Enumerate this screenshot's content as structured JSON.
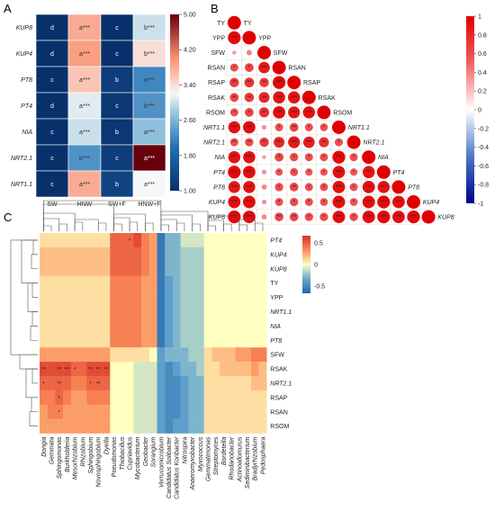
{
  "panels": {
    "a": "A",
    "b": "B",
    "c": "C"
  },
  "chart_data": [
    {
      "type": "heatmap",
      "panel": "A",
      "rows": [
        "KUP8",
        "KUP4",
        "PT8",
        "PT4",
        "NIA",
        "NRT2.1",
        "NRT1.1"
      ],
      "cols": [
        "SW",
        "HNW",
        "SW+F",
        "HNW+F"
      ],
      "values": [
        [
          1.0,
          3.8,
          1.0,
          3.0
        ],
        [
          1.0,
          3.9,
          1.0,
          3.4
        ],
        [
          1.0,
          3.6,
          1.2,
          2.2
        ],
        [
          1.0,
          3.1,
          1.1,
          2.3
        ],
        [
          1.0,
          3.0,
          1.1,
          2.7
        ],
        [
          1.0,
          2.3,
          1.2,
          5.0
        ],
        [
          1.0,
          3.8,
          1.3,
          3.2
        ]
      ],
      "labels": [
        [
          "d",
          "a***",
          "c",
          "b***"
        ],
        [
          "d",
          "a***",
          "c",
          "b***"
        ],
        [
          "c",
          "a***",
          "b",
          "a***"
        ],
        [
          "d",
          "a***",
          "c",
          "b***"
        ],
        [
          "c",
          "a***",
          "b",
          "a***"
        ],
        [
          "c",
          "b***",
          "c",
          "a***"
        ],
        [
          "c",
          "a***",
          "b",
          "a***"
        ]
      ],
      "colorbar_ticks": [
        "5.00",
        "4.20",
        "3.40",
        "2.60",
        "1.80",
        "1.00"
      ],
      "ylim": [
        1.0,
        5.0
      ]
    },
    {
      "type": "heatmap",
      "panel": "B",
      "variables": [
        "TY",
        "YPP",
        "SFW",
        "RSAN",
        "RSAP",
        "RSAK",
        "RSOM",
        "NRT1.1",
        "NRT2.1",
        "NIA",
        "PT4",
        "PT8",
        "KUP4",
        "KUP8"
      ],
      "italic_variables": [
        "NRT1.1",
        "NRT2.1",
        "NIA",
        "PT4",
        "PT8",
        "KUP4",
        "KUP8"
      ],
      "correlations": [
        [
          1.0
        ],
        [
          0.95,
          1.0
        ],
        [
          0.3,
          0.4,
          1.0
        ],
        [
          0.6,
          0.65,
          0.85,
          1.0
        ],
        [
          0.7,
          0.72,
          0.7,
          0.95,
          1.0
        ],
        [
          0.65,
          0.7,
          0.8,
          0.9,
          0.9,
          1.0
        ],
        [
          0.6,
          0.65,
          0.75,
          0.92,
          0.88,
          0.9,
          1.0
        ],
        [
          0.9,
          0.92,
          0.35,
          0.6,
          0.65,
          0.6,
          0.58,
          1.0
        ],
        [
          0.6,
          0.62,
          0.7,
          0.8,
          0.88,
          0.85,
          0.75,
          0.6,
          1.0
        ],
        [
          0.9,
          0.9,
          0.3,
          0.65,
          0.62,
          0.6,
          0.6,
          0.95,
          0.6,
          1.0
        ],
        [
          0.95,
          0.93,
          0.35,
          0.55,
          0.6,
          0.55,
          0.55,
          0.92,
          0.55,
          0.9,
          1.0
        ],
        [
          0.88,
          0.9,
          0.38,
          0.62,
          0.65,
          0.6,
          0.6,
          0.92,
          0.6,
          0.92,
          0.9,
          1.0
        ],
        [
          0.92,
          0.93,
          0.35,
          0.6,
          0.62,
          0.6,
          0.58,
          0.93,
          0.58,
          0.93,
          0.95,
          0.92,
          1.0
        ],
        [
          0.95,
          0.93,
          0.38,
          0.65,
          0.65,
          0.62,
          0.62,
          0.92,
          0.62,
          0.93,
          0.95,
          0.92,
          0.95,
          1.0
        ]
      ],
      "significance": [
        [
          ""
        ],
        [
          "***",
          ""
        ],
        [
          "",
          "",
          ""
        ],
        [
          "*",
          "*",
          "***",
          ""
        ],
        [
          "**",
          "**",
          "**",
          "***",
          ""
        ],
        [
          "**",
          "**",
          "**",
          "***",
          "***",
          ""
        ],
        [
          "*",
          "*",
          "**",
          "***",
          "***",
          "***",
          ""
        ],
        [
          "***",
          "***",
          "",
          "*",
          "**",
          "*",
          "*",
          ""
        ],
        [
          "**",
          "**",
          "**",
          "***",
          "***",
          "***",
          "**",
          "*",
          ""
        ],
        [
          "***",
          "***",
          "",
          "*",
          "*",
          "*",
          "*",
          "***",
          "*",
          ""
        ],
        [
          "***",
          "***",
          "",
          "*",
          "*",
          "*",
          "*",
          "***",
          "*",
          "***",
          ""
        ],
        [
          "***",
          "***",
          "",
          "*",
          "**",
          "*",
          "*",
          "***",
          "*",
          "***",
          "***",
          ""
        ],
        [
          "***",
          "***",
          "",
          "*",
          "*",
          "*",
          "*",
          "***",
          "*",
          "***",
          "***",
          "***",
          ""
        ],
        [
          "***",
          "***",
          "",
          "**",
          "**",
          "*",
          "*",
          "***",
          "*",
          "***",
          "***",
          "***",
          "***",
          ""
        ]
      ],
      "colorbar_ticks": [
        "1",
        "0.8",
        "0.6",
        "0.4",
        "0.2",
        "0",
        "-0.2",
        "-0.4",
        "-0.6",
        "-0.8",
        "-1"
      ]
    },
    {
      "type": "heatmap",
      "panel": "C",
      "rows": [
        "PT4",
        "KUP4",
        "KUP8",
        "TY",
        "YPP",
        "NRT1.1",
        "NIA",
        "PT8",
        "SFW",
        "RSAK",
        "NRT2.1",
        "RSAP",
        "RSAN",
        "RSOM"
      ],
      "italic_rows": [
        "PT4",
        "KUP4",
        "KUP8",
        "NRT1.1",
        "NIA",
        "PT8",
        "NRT2.1"
      ],
      "cols": [
        "Dongia",
        "Gemmata",
        "Sphingomonas",
        "Burkholderia",
        "Mesorhizobium",
        "Rhizobium",
        "Sphingobium",
        "Novosphingobium",
        "Dyella",
        "Pseudomonas",
        "Thiobacillus",
        "Cupriavidus",
        "Mycobacterium",
        "Geobacter",
        "Sorangium",
        "Verrucomicrobium",
        "Candidatus Solibacter",
        "Candidatus Koribacter",
        "Nitrospira",
        "Anaeromyxobacter",
        "Myxococcus",
        "Gemmatimonas",
        "Streptomyces",
        "Bordetella",
        "Rhodanobacter",
        "Actinoallomurus",
        "Sediminibacterium",
        "Bradyrhizobium",
        "Pedosphaera"
      ],
      "values": [
        [
          0.1,
          0.1,
          0.1,
          0.1,
          0.1,
          0.1,
          0.1,
          0.1,
          0.1,
          0.5,
          0.5,
          0.5,
          0.6,
          0.4,
          0.3,
          -0.6,
          -0.3,
          -0.3,
          -0.1,
          -0.1,
          -0.1,
          0.0,
          0.0,
          0.0,
          0.0,
          0.0,
          0.0,
          0.0,
          0.0
        ],
        [
          0.2,
          0.2,
          0.2,
          0.2,
          0.2,
          0.2,
          0.2,
          0.2,
          0.2,
          0.5,
          0.5,
          0.5,
          0.5,
          0.4,
          0.3,
          -0.6,
          -0.3,
          -0.3,
          -0.2,
          -0.2,
          -0.2,
          0.0,
          0.0,
          0.0,
          0.0,
          0.0,
          0.0,
          0.0,
          0.0
        ],
        [
          0.2,
          0.2,
          0.2,
          0.2,
          0.2,
          0.2,
          0.2,
          0.2,
          0.2,
          0.5,
          0.5,
          0.5,
          0.5,
          0.4,
          0.3,
          -0.6,
          -0.3,
          -0.3,
          -0.2,
          -0.2,
          -0.2,
          0.0,
          0.0,
          0.0,
          0.0,
          0.0,
          0.0,
          0.0,
          0.0
        ],
        [
          0.1,
          0.1,
          0.1,
          0.1,
          0.1,
          0.1,
          0.1,
          0.1,
          0.1,
          0.4,
          0.4,
          0.4,
          0.4,
          0.3,
          0.3,
          -0.6,
          -0.4,
          -0.3,
          -0.2,
          -0.2,
          -0.2,
          0.0,
          0.0,
          0.0,
          0.0,
          0.0,
          0.0,
          0.0,
          0.0
        ],
        [
          0.1,
          0.1,
          0.1,
          0.1,
          0.1,
          0.1,
          0.1,
          0.1,
          0.1,
          0.4,
          0.4,
          0.4,
          0.4,
          0.3,
          0.3,
          -0.6,
          -0.4,
          -0.3,
          -0.2,
          -0.2,
          -0.2,
          0.0,
          0.0,
          0.0,
          0.0,
          0.0,
          0.0,
          0.0,
          0.0
        ],
        [
          0.1,
          0.1,
          0.1,
          0.1,
          0.1,
          0.1,
          0.1,
          0.1,
          0.1,
          0.4,
          0.4,
          0.4,
          0.4,
          0.3,
          0.3,
          -0.6,
          -0.4,
          -0.3,
          -0.2,
          -0.2,
          -0.2,
          0.0,
          0.0,
          0.0,
          0.0,
          0.0,
          0.0,
          0.0,
          0.0
        ],
        [
          0.1,
          0.1,
          0.1,
          0.1,
          0.1,
          0.1,
          0.1,
          0.1,
          0.1,
          0.4,
          0.4,
          0.4,
          0.4,
          0.3,
          0.3,
          -0.6,
          -0.4,
          -0.3,
          -0.2,
          -0.2,
          -0.2,
          0.0,
          0.0,
          0.0,
          0.0,
          0.0,
          0.0,
          0.0,
          0.0
        ],
        [
          0.1,
          0.1,
          0.1,
          0.1,
          0.1,
          0.1,
          0.1,
          0.1,
          0.1,
          0.4,
          0.4,
          0.4,
          0.4,
          0.3,
          0.3,
          -0.6,
          -0.4,
          -0.3,
          -0.2,
          -0.2,
          -0.2,
          0.0,
          0.0,
          0.0,
          0.0,
          0.0,
          0.0,
          0.0,
          0.0
        ],
        [
          0.3,
          0.3,
          0.3,
          0.3,
          0.3,
          0.3,
          0.3,
          0.3,
          0.3,
          0.1,
          0.1,
          0.1,
          0.1,
          0.1,
          0.0,
          -0.4,
          -0.3,
          -0.3,
          -0.3,
          -0.2,
          -0.2,
          0.1,
          0.2,
          0.2,
          0.2,
          0.3,
          0.3,
          0.4,
          0.4
        ],
        [
          0.6,
          0.6,
          0.6,
          0.6,
          0.5,
          0.5,
          0.6,
          0.6,
          0.6,
          0.0,
          0.0,
          0.0,
          -0.1,
          -0.1,
          -0.1,
          -0.4,
          -0.5,
          -0.4,
          -0.3,
          -0.3,
          -0.2,
          0.1,
          0.1,
          0.2,
          0.2,
          0.2,
          0.2,
          0.3,
          0.2
        ],
        [
          0.5,
          0.5,
          0.5,
          0.5,
          0.4,
          0.4,
          0.5,
          0.5,
          0.5,
          0.0,
          0.0,
          0.0,
          -0.1,
          -0.1,
          -0.1,
          -0.4,
          -0.5,
          -0.5,
          -0.4,
          -0.3,
          -0.3,
          0.1,
          0.1,
          0.1,
          0.1,
          0.1,
          0.1,
          0.2,
          0.2
        ],
        [
          0.4,
          0.4,
          0.5,
          0.4,
          0.3,
          0.3,
          0.4,
          0.4,
          0.4,
          0.0,
          0.0,
          0.0,
          -0.1,
          -0.1,
          -0.1,
          -0.4,
          -0.5,
          -0.5,
          -0.4,
          -0.3,
          -0.3,
          0.1,
          0.1,
          0.1,
          0.1,
          0.1,
          0.1,
          0.1,
          0.1
        ],
        [
          0.3,
          0.4,
          0.4,
          0.3,
          0.3,
          0.3,
          0.3,
          0.3,
          0.3,
          0.0,
          0.0,
          0.0,
          -0.1,
          -0.1,
          -0.1,
          -0.4,
          -0.5,
          -0.5,
          -0.4,
          -0.3,
          -0.3,
          0.1,
          0.1,
          0.1,
          0.1,
          0.1,
          0.1,
          0.1,
          0.1
        ],
        [
          0.3,
          0.3,
          0.3,
          0.3,
          0.3,
          0.3,
          0.3,
          0.3,
          0.3,
          0.0,
          0.0,
          0.0,
          -0.1,
          -0.1,
          -0.1,
          -0.4,
          -0.5,
          -0.4,
          -0.4,
          -0.3,
          -0.3,
          0.1,
          0.1,
          0.1,
          0.1,
          0.1,
          0.1,
          0.1,
          0.1
        ]
      ],
      "stars": [
        {
          "row": "PT4",
          "col": "Cupriavidus",
          "text": "*"
        },
        {
          "row": "RSAK",
          "col": "Dongia",
          "text": "**"
        },
        {
          "row": "RSAK",
          "col": "Sphingomonas",
          "text": "**"
        },
        {
          "row": "RSAK",
          "col": "Burkholderia",
          "text": "***"
        },
        {
          "row": "RSAK",
          "col": "Mesorhizobium",
          "text": "*"
        },
        {
          "row": "RSAK",
          "col": "Sphingobium",
          "text": "**"
        },
        {
          "row": "RSAK",
          "col": "Novosphingobium",
          "text": "**"
        },
        {
          "row": "RSAK",
          "col": "Dyella",
          "text": "**"
        },
        {
          "row": "NRT2.1",
          "col": "Dongia",
          "text": "*"
        },
        {
          "row": "NRT2.1",
          "col": "Sphingomonas",
          "text": "**"
        },
        {
          "row": "NRT2.1",
          "col": "Sphingobium",
          "text": "*"
        },
        {
          "row": "NRT2.1",
          "col": "Novosphingobium",
          "text": "**"
        },
        {
          "row": "RSAP",
          "col": "Sphingomonas",
          "text": "*"
        },
        {
          "row": "RSAN",
          "col": "Sphingomonas",
          "text": "*"
        }
      ],
      "colorbar_ticks": [
        "0.5",
        "0",
        "-0.5"
      ]
    }
  ]
}
